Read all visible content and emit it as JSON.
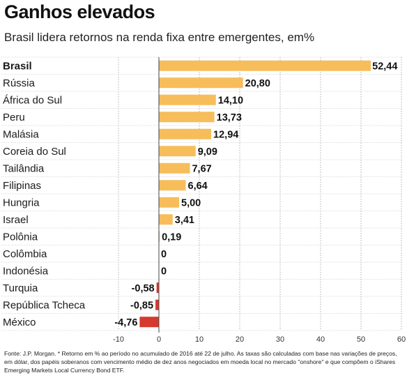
{
  "header": {
    "title": "Ganhos elevados",
    "subtitle": "Brasil lidera retornos na renda fixa entre emergentes, em%"
  },
  "source": "Fonte: J.P. Morgan. * Retorno em % ao período no acumulado de 2016 até 22 de julho. As taxas são calculadas com base nas variações de preços, em dólar, dos papéis soberanos com vencimento médio de dez anos negociados em moeda local no mercado \"onshore\" e que compõem o iShares Emerging Markets Local Currency Bond ETF.",
  "colors": {
    "positive_bar": "#f7bd5b",
    "negative_bar": "#d6392f",
    "axis_line": "#444444",
    "row_divider": "#c8c8c8"
  },
  "chart_data": {
    "type": "bar",
    "orientation": "horizontal",
    "title": "Ganhos elevados",
    "subtitle": "Brasil lidera retornos na renda fixa entre emergentes, em%",
    "categories": [
      "Brasil",
      "Rússia",
      "África do Sul",
      "Peru",
      "Malásia",
      "Coreia do Sul",
      "Tailândia",
      "Filipinas",
      "Hungria",
      "Israel",
      "Polônia",
      "Colômbia",
      "Indonésia",
      "Turquia",
      "República Tcheca",
      "México"
    ],
    "values": [
      52.44,
      20.8,
      14.1,
      13.73,
      12.94,
      9.09,
      7.67,
      6.64,
      5.0,
      3.41,
      0.19,
      0,
      0,
      -0.58,
      -0.85,
      -4.76
    ],
    "value_labels": [
      "52,44",
      "20,80",
      "14,10",
      "13,73",
      "12,94",
      "9,09",
      "7,67",
      "6,64",
      "5,00",
      "3,41",
      "0,19",
      "0",
      "0",
      "-0,58",
      "-0,85",
      "-4,76"
    ],
    "highlight_category": "Brasil",
    "xlim": [
      -10,
      60
    ],
    "xticks": [
      -10,
      0,
      10,
      20,
      30,
      40,
      50,
      60
    ],
    "xlabel": "",
    "ylabel": "",
    "grid": true,
    "legend": "none"
  }
}
